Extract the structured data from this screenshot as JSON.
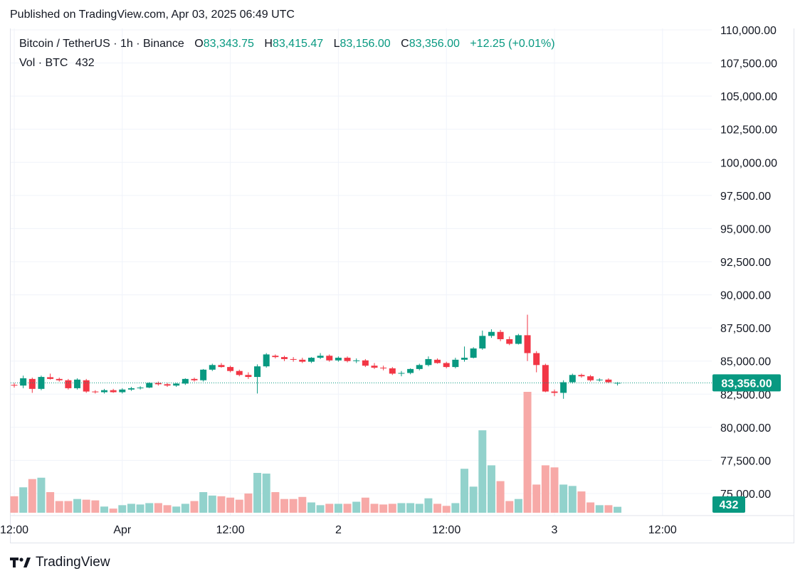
{
  "header": {
    "published": "Published on TradingView.com, Apr 03, 2025 06:49 UTC"
  },
  "legend": {
    "symbol": "Bitcoin / TetherUS · 1h · Binance",
    "o_label": "O",
    "o_value": "83,343.75",
    "h_label": "H",
    "h_value": "83,415.47",
    "l_label": "L",
    "l_value": "83,156.00",
    "c_label": "C",
    "c_value": "83,356.00",
    "change": "+12.25 (+0.01%)"
  },
  "volume_legend": {
    "label": "Vol · BTC",
    "value": "432"
  },
  "footer": {
    "brand": "TradingView"
  },
  "colors": {
    "up": "#089981",
    "down": "#f23645",
    "up_vol": "#92d2cc",
    "down_vol": "#f7a9a7",
    "grid": "#f0f3fa",
    "text": "#131722"
  },
  "chart_data": {
    "type": "candlestick",
    "title": "Bitcoin / TetherUS · 1h · Binance",
    "interval": "1h",
    "y_axis": {
      "range": [
        74300,
        110400
      ],
      "ticks": [
        75000,
        77500,
        80000,
        82500,
        85000,
        87500,
        90000,
        92500,
        95000,
        97500,
        100000,
        102500,
        105000,
        107500,
        110000
      ],
      "tick_labels": [
        "75,000.00",
        "77,500.00",
        "80,000.00",
        "82,500.00",
        "85,000.00",
        "87,500.00",
        "90,000.00",
        "92,500.00",
        "95,000.00",
        "97,500.00",
        "100,000.00",
        "102,500.00",
        "105,000.00",
        "107,500.00",
        "110,000.00"
      ]
    },
    "x_axis": {
      "ticks": [
        {
          "bar": 0,
          "label": "12:00"
        },
        {
          "bar": 12,
          "label": "Apr"
        },
        {
          "bar": 24,
          "label": "12:00"
        },
        {
          "bar": 36,
          "label": "2"
        },
        {
          "bar": 48,
          "label": "12:00"
        },
        {
          "bar": 60,
          "label": "3"
        },
        {
          "bar": 72,
          "label": "12:00"
        }
      ]
    },
    "last_price": {
      "value": 83356,
      "label": "83,356.00"
    },
    "last_volume": {
      "value": 432,
      "label": "432"
    },
    "volume_max": 8800,
    "candles": [
      {
        "o": 83200,
        "h": 83350,
        "l": 83000,
        "c": 83150,
        "v": 1200
      },
      {
        "o": 83150,
        "h": 83900,
        "l": 82950,
        "c": 83700,
        "v": 1850
      },
      {
        "o": 83650,
        "h": 83750,
        "l": 82600,
        "c": 82900,
        "v": 2450
      },
      {
        "o": 82900,
        "h": 83900,
        "l": 82800,
        "c": 83800,
        "v": 2550
      },
      {
        "o": 83780,
        "h": 84050,
        "l": 83600,
        "c": 83650,
        "v": 1500
      },
      {
        "o": 83650,
        "h": 83750,
        "l": 83450,
        "c": 83550,
        "v": 850
      },
      {
        "o": 83550,
        "h": 83650,
        "l": 82850,
        "c": 82950,
        "v": 850
      },
      {
        "o": 82950,
        "h": 83700,
        "l": 82850,
        "c": 83600,
        "v": 1000
      },
      {
        "o": 83550,
        "h": 83650,
        "l": 82600,
        "c": 82700,
        "v": 950
      },
      {
        "o": 82700,
        "h": 82800,
        "l": 82550,
        "c": 82650,
        "v": 900
      },
      {
        "o": 82650,
        "h": 82900,
        "l": 82550,
        "c": 82800,
        "v": 450
      },
      {
        "o": 82800,
        "h": 82900,
        "l": 82600,
        "c": 82650,
        "v": 300
      },
      {
        "o": 82650,
        "h": 82950,
        "l": 82550,
        "c": 82850,
        "v": 550
      },
      {
        "o": 82850,
        "h": 83050,
        "l": 82750,
        "c": 82950,
        "v": 650
      },
      {
        "o": 82950,
        "h": 83100,
        "l": 82850,
        "c": 83000,
        "v": 600
      },
      {
        "o": 83000,
        "h": 83400,
        "l": 82950,
        "c": 83350,
        "v": 700
      },
      {
        "o": 83350,
        "h": 83450,
        "l": 83150,
        "c": 83250,
        "v": 700
      },
      {
        "o": 83250,
        "h": 83350,
        "l": 83050,
        "c": 83150,
        "v": 550
      },
      {
        "o": 83150,
        "h": 83350,
        "l": 83050,
        "c": 83300,
        "v": 450
      },
      {
        "o": 83300,
        "h": 83700,
        "l": 83200,
        "c": 83650,
        "v": 650
      },
      {
        "o": 83650,
        "h": 83750,
        "l": 83450,
        "c": 83550,
        "v": 850
      },
      {
        "o": 83550,
        "h": 84400,
        "l": 83450,
        "c": 84350,
        "v": 1500
      },
      {
        "o": 84350,
        "h": 84800,
        "l": 84250,
        "c": 84700,
        "v": 1250
      },
      {
        "o": 84700,
        "h": 84850,
        "l": 84500,
        "c": 84550,
        "v": 1200
      },
      {
        "o": 84550,
        "h": 84650,
        "l": 84150,
        "c": 84250,
        "v": 1100
      },
      {
        "o": 84250,
        "h": 84350,
        "l": 83850,
        "c": 83950,
        "v": 950
      },
      {
        "o": 83950,
        "h": 84150,
        "l": 83650,
        "c": 83800,
        "v": 1400
      },
      {
        "o": 83800,
        "h": 84750,
        "l": 82550,
        "c": 84600,
        "v": 2900
      },
      {
        "o": 84600,
        "h": 85600,
        "l": 84500,
        "c": 85500,
        "v": 2850
      },
      {
        "o": 85400,
        "h": 85500,
        "l": 85200,
        "c": 85300,
        "v": 1500
      },
      {
        "o": 85300,
        "h": 85400,
        "l": 85000,
        "c": 85150,
        "v": 1000
      },
      {
        "o": 85150,
        "h": 85300,
        "l": 84950,
        "c": 85100,
        "v": 1000
      },
      {
        "o": 85100,
        "h": 85250,
        "l": 84850,
        "c": 84950,
        "v": 1150
      },
      {
        "o": 84950,
        "h": 85300,
        "l": 84850,
        "c": 85250,
        "v": 750
      },
      {
        "o": 85250,
        "h": 85600,
        "l": 85150,
        "c": 85400,
        "v": 550
      },
      {
        "o": 85400,
        "h": 85500,
        "l": 84950,
        "c": 85050,
        "v": 650
      },
      {
        "o": 85050,
        "h": 85350,
        "l": 84950,
        "c": 85250,
        "v": 650
      },
      {
        "o": 85250,
        "h": 85350,
        "l": 84900,
        "c": 85000,
        "v": 650
      },
      {
        "o": 85000,
        "h": 85200,
        "l": 84850,
        "c": 85050,
        "v": 800
      },
      {
        "o": 85050,
        "h": 85150,
        "l": 84550,
        "c": 84650,
        "v": 1100
      },
      {
        "o": 84650,
        "h": 84850,
        "l": 84400,
        "c": 84500,
        "v": 650
      },
      {
        "o": 84500,
        "h": 84650,
        "l": 84300,
        "c": 84450,
        "v": 600
      },
      {
        "o": 84450,
        "h": 84550,
        "l": 83950,
        "c": 84050,
        "v": 650
      },
      {
        "o": 84050,
        "h": 84250,
        "l": 83850,
        "c": 84100,
        "v": 700
      },
      {
        "o": 84100,
        "h": 84450,
        "l": 84000,
        "c": 84400,
        "v": 700
      },
      {
        "o": 84400,
        "h": 84800,
        "l": 84300,
        "c": 84700,
        "v": 650
      },
      {
        "o": 84700,
        "h": 85350,
        "l": 84600,
        "c": 85150,
        "v": 1050
      },
      {
        "o": 85100,
        "h": 85200,
        "l": 84800,
        "c": 84850,
        "v": 650
      },
      {
        "o": 84850,
        "h": 84950,
        "l": 84450,
        "c": 84550,
        "v": 500
      },
      {
        "o": 84550,
        "h": 85250,
        "l": 84450,
        "c": 85100,
        "v": 700
      },
      {
        "o": 85100,
        "h": 86100,
        "l": 84950,
        "c": 85250,
        "v": 3200
      },
      {
        "o": 85250,
        "h": 86050,
        "l": 85200,
        "c": 85950,
        "v": 1900
      },
      {
        "o": 85950,
        "h": 87300,
        "l": 85850,
        "c": 86900,
        "v": 6000
      },
      {
        "o": 86900,
        "h": 87400,
        "l": 86750,
        "c": 87200,
        "v": 3450
      },
      {
        "o": 87200,
        "h": 87350,
        "l": 86500,
        "c": 86650,
        "v": 2300
      },
      {
        "o": 86650,
        "h": 86850,
        "l": 86200,
        "c": 86300,
        "v": 850
      },
      {
        "o": 86300,
        "h": 87050,
        "l": 86250,
        "c": 86950,
        "v": 1000
      },
      {
        "o": 86950,
        "h": 88500,
        "l": 85000,
        "c": 85600,
        "v": 8800
      },
      {
        "o": 85600,
        "h": 85750,
        "l": 84150,
        "c": 84700,
        "v": 2050
      },
      {
        "o": 84700,
        "h": 84800,
        "l": 82650,
        "c": 82700,
        "v": 3450
      },
      {
        "o": 82700,
        "h": 82850,
        "l": 82350,
        "c": 82600,
        "v": 3300
      },
      {
        "o": 82600,
        "h": 83550,
        "l": 82150,
        "c": 83400,
        "v": 2050
      },
      {
        "o": 83400,
        "h": 84050,
        "l": 83300,
        "c": 83950,
        "v": 1950
      },
      {
        "o": 83950,
        "h": 84050,
        "l": 83750,
        "c": 83850,
        "v": 1550
      },
      {
        "o": 83850,
        "h": 83950,
        "l": 83450,
        "c": 83550,
        "v": 750
      },
      {
        "o": 83550,
        "h": 83700,
        "l": 83450,
        "c": 83600,
        "v": 550
      },
      {
        "o": 83600,
        "h": 83700,
        "l": 83350,
        "c": 83400,
        "v": 550
      },
      {
        "o": 83343.75,
        "h": 83415.47,
        "l": 83156,
        "c": 83356,
        "v": 432
      }
    ]
  }
}
